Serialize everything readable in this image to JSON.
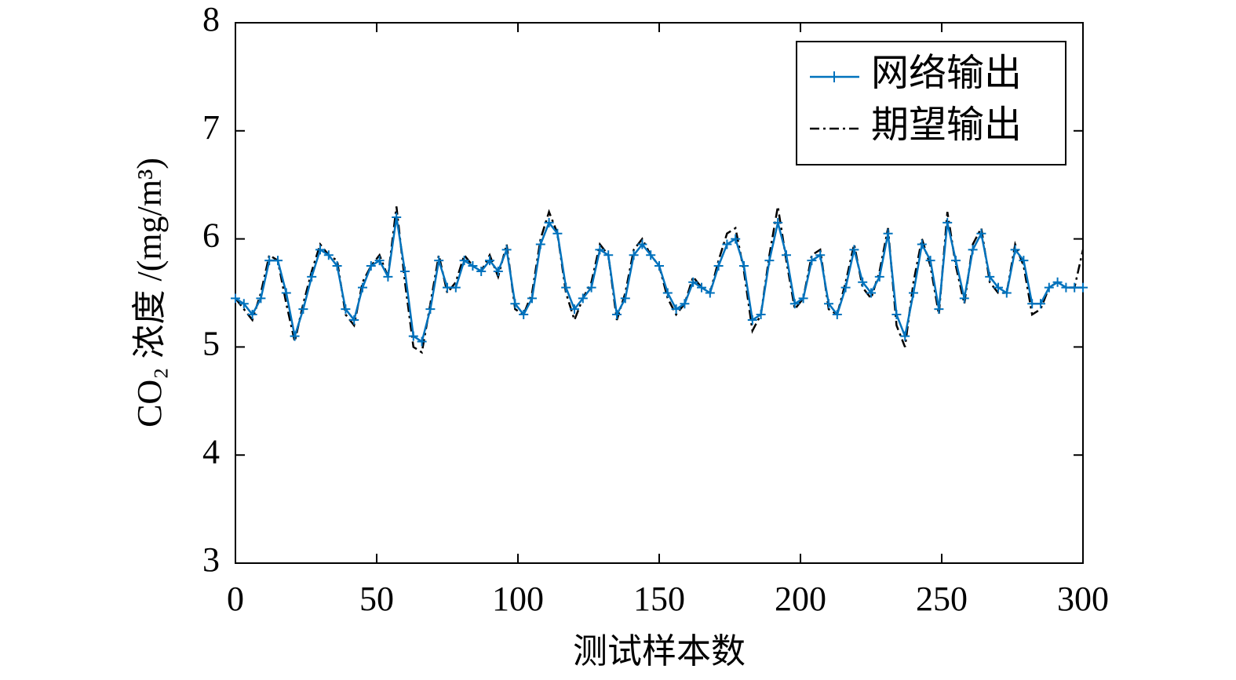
{
  "chart_data": {
    "type": "line",
    "xlabel": "测试样本数",
    "ylabel": "CO₂ 浓度 /(mg/m³)",
    "xlim": [
      0,
      300
    ],
    "xticks": [
      0,
      50,
      100,
      150,
      200,
      250,
      300
    ],
    "ylim": [
      3,
      8
    ],
    "yticks": [
      3,
      4,
      5,
      6,
      7,
      8
    ],
    "legend": "upper right",
    "x": [
      0,
      3,
      6,
      9,
      12,
      15,
      18,
      21,
      24,
      27,
      30,
      33,
      36,
      39,
      42,
      45,
      48,
      51,
      54,
      57,
      60,
      63,
      66,
      69,
      72,
      75,
      78,
      81,
      84,
      87,
      90,
      93,
      96,
      99,
      102,
      105,
      108,
      111,
      114,
      117,
      120,
      123,
      126,
      129,
      132,
      135,
      138,
      141,
      144,
      147,
      150,
      153,
      156,
      159,
      162,
      165,
      168,
      171,
      174,
      177,
      180,
      183,
      186,
      189,
      192,
      195,
      198,
      201,
      204,
      207,
      210,
      213,
      216,
      219,
      222,
      225,
      228,
      231,
      234,
      237,
      240,
      243,
      246,
      249,
      252,
      255,
      258,
      261,
      264,
      267,
      270,
      273,
      276,
      279,
      282,
      285,
      288,
      291,
      294,
      297,
      300
    ],
    "series": [
      {
        "name": "网络输出",
        "color": "#0072bd",
        "style": "solid-plus",
        "values": [
          5.45,
          5.4,
          5.3,
          5.45,
          5.8,
          5.8,
          5.5,
          5.1,
          5.35,
          5.65,
          5.9,
          5.85,
          5.75,
          5.35,
          5.25,
          5.55,
          5.75,
          5.8,
          5.65,
          6.2,
          5.7,
          5.1,
          5.05,
          5.35,
          5.8,
          5.55,
          5.55,
          5.8,
          5.75,
          5.7,
          5.8,
          5.7,
          5.9,
          5.4,
          5.3,
          5.45,
          5.95,
          6.15,
          6.05,
          5.55,
          5.35,
          5.45,
          5.55,
          5.9,
          5.85,
          5.3,
          5.45,
          5.85,
          5.95,
          5.85,
          5.75,
          5.5,
          5.35,
          5.4,
          5.6,
          5.55,
          5.5,
          5.75,
          5.95,
          6.0,
          5.75,
          5.25,
          5.3,
          5.8,
          6.15,
          5.85,
          5.4,
          5.45,
          5.8,
          5.85,
          5.4,
          5.3,
          5.55,
          5.9,
          5.6,
          5.5,
          5.65,
          6.05,
          5.3,
          5.1,
          5.5,
          5.95,
          5.8,
          5.35,
          6.15,
          5.8,
          5.45,
          5.9,
          6.05,
          5.65,
          5.55,
          5.5,
          5.9,
          5.8,
          5.4,
          5.4,
          5.55,
          5.6,
          5.55,
          5.55,
          5.55
        ]
      },
      {
        "name": "期望输出",
        "color": "#000000",
        "style": "dashdot",
        "values": [
          5.45,
          5.35,
          5.25,
          5.5,
          5.85,
          5.8,
          5.4,
          5.05,
          5.4,
          5.7,
          5.95,
          5.85,
          5.8,
          5.3,
          5.2,
          5.6,
          5.75,
          5.85,
          5.65,
          6.3,
          5.6,
          5.0,
          4.95,
          5.4,
          5.85,
          5.5,
          5.6,
          5.85,
          5.75,
          5.7,
          5.85,
          5.65,
          5.95,
          5.35,
          5.3,
          5.5,
          6.0,
          6.25,
          6.05,
          5.5,
          5.25,
          5.45,
          5.6,
          5.95,
          5.85,
          5.25,
          5.5,
          5.9,
          6.0,
          5.85,
          5.75,
          5.45,
          5.3,
          5.4,
          5.65,
          5.55,
          5.5,
          5.8,
          6.05,
          6.1,
          5.7,
          5.15,
          5.3,
          5.85,
          6.3,
          5.8,
          5.35,
          5.45,
          5.85,
          5.9,
          5.35,
          5.3,
          5.6,
          5.95,
          5.55,
          5.45,
          5.7,
          6.1,
          5.2,
          5.0,
          5.6,
          6.0,
          5.75,
          5.3,
          6.25,
          5.75,
          5.4,
          5.95,
          6.1,
          5.6,
          5.5,
          5.5,
          5.95,
          5.75,
          5.3,
          5.35,
          5.55,
          5.6,
          5.55,
          5.55,
          5.9
        ]
      }
    ]
  }
}
